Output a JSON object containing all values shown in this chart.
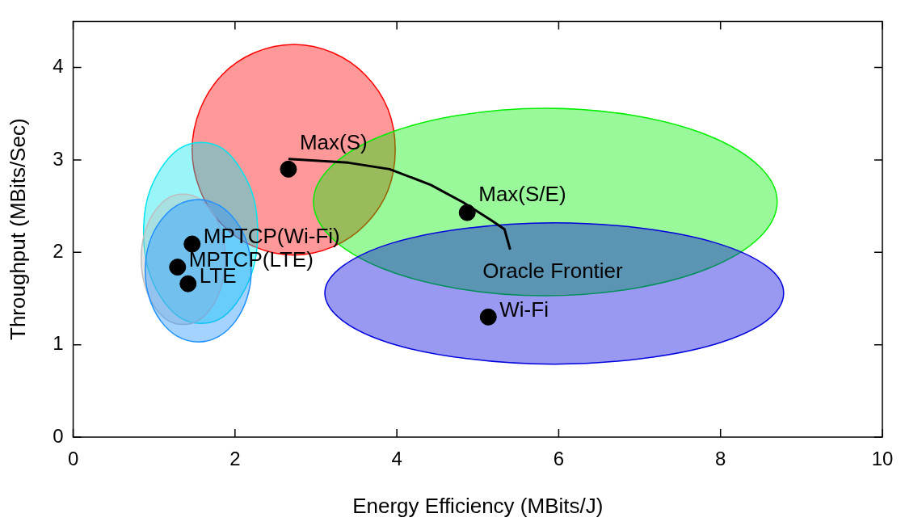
{
  "chart_data": {
    "type": "scatter",
    "xlabel": "Energy Efficiency (MBits/J)",
    "ylabel": "Throughput (MBits/Sec)",
    "xlim": [
      0,
      10
    ],
    "ylim": [
      0,
      4.5
    ],
    "xticks": [
      0,
      2,
      4,
      6,
      8,
      10
    ],
    "yticks": [
      0,
      1,
      2,
      3,
      4
    ],
    "grid": false,
    "legend": false,
    "series": [
      {
        "type": "area",
        "color": "#ff0000",
        "x": [
          3.98,
          3.89,
          3.61,
          3.21,
          2.73,
          2.24,
          1.84,
          1.57,
          1.47,
          1.57,
          1.84,
          2.24,
          2.73,
          3.21,
          3.61,
          3.89
        ],
        "values": [
          3.11,
          3.55,
          3.92,
          4.16,
          4.25,
          4.16,
          3.92,
          3.55,
          3.11,
          2.67,
          2.3,
          2.06,
          1.97,
          2.06,
          2.3,
          2.67
        ]
      },
      {
        "type": "area",
        "color": "#00ee00",
        "x": [
          8.7,
          8.48,
          7.86,
          6.93,
          5.84,
          4.74,
          3.81,
          3.19,
          2.97,
          3.19,
          3.81,
          4.74,
          5.84,
          6.93,
          7.86,
          8.48
        ],
        "values": [
          2.55,
          2.93,
          3.26,
          3.48,
          3.56,
          3.48,
          3.26,
          2.93,
          2.55,
          2.16,
          1.83,
          1.61,
          1.53,
          1.61,
          1.83,
          2.16
        ]
      },
      {
        "type": "area",
        "color": "#0000dd",
        "x": [
          8.78,
          8.57,
          7.95,
          7.03,
          5.95,
          4.86,
          3.94,
          3.33,
          3.11,
          3.33,
          3.94,
          4.86,
          5.95,
          7.03,
          7.95,
          8.57
        ],
        "values": [
          1.56,
          1.85,
          2.1,
          2.26,
          2.32,
          2.26,
          2.1,
          1.85,
          1.56,
          1.26,
          1.01,
          0.85,
          0.79,
          0.85,
          1.01,
          1.26
        ]
      },
      {
        "type": "area",
        "color": "#00e5ee",
        "x": [
          2.28,
          2.23,
          2.07,
          1.85,
          1.58,
          1.31,
          1.08,
          0.92,
          0.87,
          0.92,
          1.08,
          1.31,
          1.58,
          1.85,
          2.07,
          2.23
        ],
        "values": [
          2.21,
          2.59,
          2.9,
          3.12,
          3.19,
          3.12,
          2.9,
          2.59,
          2.21,
          1.84,
          1.52,
          1.3,
          1.23,
          1.3,
          1.52,
          1.84
        ]
      },
      {
        "type": "area",
        "color": "#bebebe",
        "x": [
          1.88,
          1.84,
          1.73,
          1.56,
          1.36,
          1.16,
          0.99,
          0.88,
          0.84,
          0.88,
          0.99,
          1.16,
          1.36,
          1.56,
          1.73,
          1.84
        ],
        "values": [
          1.93,
          2.2,
          2.42,
          2.58,
          2.63,
          2.58,
          2.42,
          2.2,
          1.93,
          1.66,
          1.43,
          1.27,
          1.22,
          1.27,
          1.43,
          1.66
        ]
      },
      {
        "type": "area",
        "color": "#1e90ff",
        "x": [
          2.2,
          2.15,
          2.01,
          1.8,
          1.55,
          1.29,
          1.08,
          0.94,
          0.89,
          0.94,
          1.08,
          1.29,
          1.55,
          1.8,
          2.01,
          2.15
        ],
        "values": [
          1.8,
          2.1,
          2.34,
          2.51,
          2.57,
          2.51,
          2.34,
          2.1,
          1.8,
          1.51,
          1.26,
          1.09,
          1.03,
          1.09,
          1.26,
          1.51
        ]
      },
      {
        "type": "line",
        "color": "#000000",
        "x": [
          2.66,
          3.4,
          3.91,
          4.42,
          4.82,
          5.18,
          5.33,
          5.4
        ],
        "values": [
          3.01,
          2.97,
          2.9,
          2.73,
          2.54,
          2.34,
          2.25,
          2.03
        ]
      },
      {
        "name": "Max(S)",
        "color": "#000000",
        "x": [
          2.66
        ],
        "values": [
          2.9
        ]
      },
      {
        "name": "Max(S/E)",
        "color": "#000000",
        "x": [
          4.87
        ],
        "values": [
          2.43
        ]
      },
      {
        "name": "Wi-Fi",
        "color": "#000000",
        "x": [
          5.13
        ],
        "values": [
          1.3
        ]
      },
      {
        "name": "MPTCP(Wi-Fi)",
        "color": "#000000",
        "x": [
          1.47
        ],
        "values": [
          2.09
        ]
      },
      {
        "name": "MPTCP(LTE)",
        "color": "#000000",
        "x": [
          1.29
        ],
        "values": [
          1.84
        ]
      },
      {
        "name": "LTE",
        "color": "#000000",
        "x": [
          1.42
        ],
        "values": [
          1.66
        ]
      }
    ],
    "annotations": [
      "Oracle Frontier"
    ]
  }
}
